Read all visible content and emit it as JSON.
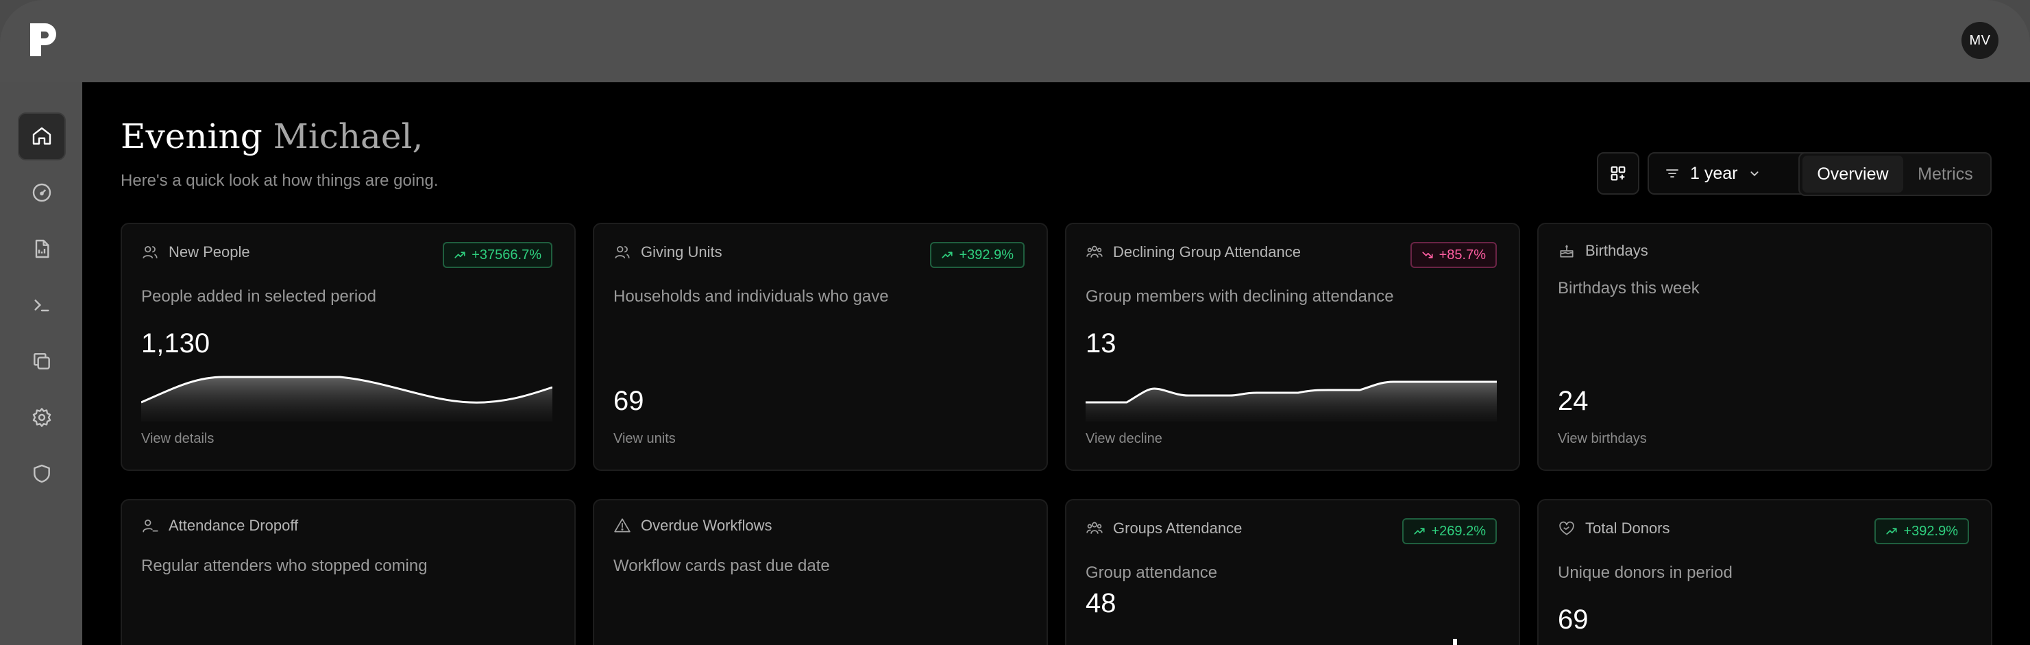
{
  "app": {
    "avatar_initials": "MV"
  },
  "sidebar": {
    "items": [
      {
        "icon": "home-icon",
        "active": true
      },
      {
        "icon": "gauge-icon",
        "active": false
      },
      {
        "icon": "report-icon",
        "active": false
      },
      {
        "icon": "terminal-icon",
        "active": false
      },
      {
        "icon": "copy-icon",
        "active": false
      },
      {
        "icon": "gear-icon",
        "active": false
      },
      {
        "icon": "shield-icon",
        "active": false
      }
    ]
  },
  "header": {
    "greeting": "Evening",
    "name": "Michael,",
    "subtitle": "Here's a quick look at how things are going."
  },
  "toolbar": {
    "period_label": "1 year",
    "tabs": [
      {
        "label": "Overview",
        "active": true
      },
      {
        "label": "Metrics",
        "active": false
      }
    ]
  },
  "cards": [
    {
      "title": "New People",
      "badge": "+37566.7%",
      "trend": "up",
      "desc": "People added in selected period",
      "value": "1,130",
      "link": "View details"
    },
    {
      "title": "Giving Units",
      "badge": "+392.9%",
      "trend": "up",
      "desc": "Households and individuals who gave",
      "value": "69",
      "link": "View units"
    },
    {
      "title": "Declining Group Attendance",
      "badge": "+85.7%",
      "trend": "down",
      "desc": "Group members with declining attendance",
      "value": "13",
      "link": "View decline"
    },
    {
      "title": "Birthdays",
      "badge": "",
      "trend": "",
      "desc": "Birthdays this week",
      "value": "24",
      "link": "View birthdays"
    },
    {
      "title": "Attendance Dropoff",
      "badge": "",
      "trend": "",
      "desc": "Regular attenders who stopped coming",
      "value": "",
      "link": ""
    },
    {
      "title": "Overdue Workflows",
      "badge": "",
      "trend": "",
      "desc": "Workflow cards past due date",
      "value": "",
      "link": ""
    },
    {
      "title": "Groups Attendance",
      "badge": "+269.2%",
      "trend": "up",
      "desc": "Group attendance",
      "value": "48",
      "link": ""
    },
    {
      "title": "Total Donors",
      "badge": "+392.9%",
      "trend": "up",
      "desc": "Unique donors in period",
      "value": "69",
      "link": ""
    }
  ],
  "colors": {
    "accent_up": "#2fd07f",
    "accent_down": "#ff5fa2",
    "background": "#000000",
    "card": "#0d0d0d"
  }
}
